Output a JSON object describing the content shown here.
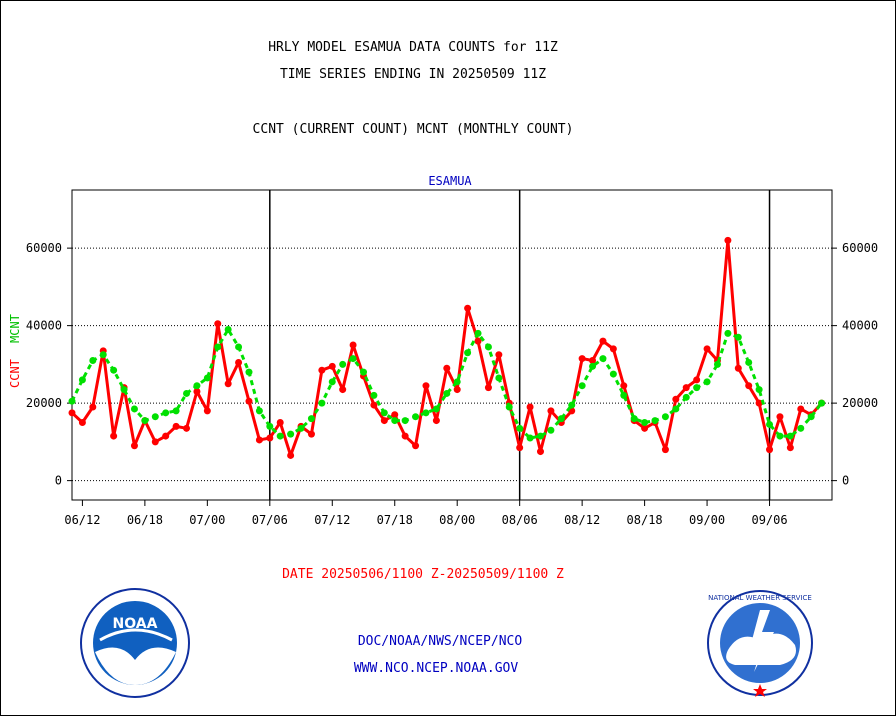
{
  "header": {
    "title_line1": "HRLY MODEL ESAMUA DATA COUNTS for 11Z",
    "title_line2": "TIME SERIES ENDING IN 20250509 11Z",
    "subtitle": "CCNT (CURRENT COUNT) MCNT (MONTHLY COUNT)"
  },
  "footer": {
    "date_range": "DATE 20250506/1100 Z-20250509/1100 Z",
    "org_path": "DOC/NOAA/NWS/NCEP/NCO",
    "website": "WWW.NCO.NCEP.NOAA.GOV",
    "noaa_logo_text": "NOAA",
    "nws_logo_text": "NATIONAL WEATHER SERVICE"
  },
  "colors": {
    "ccnt": "#ff0000",
    "mcnt": "#00e000",
    "axis": "#000000",
    "text_blue": "#0000c0"
  },
  "chart_data": {
    "type": "line",
    "title": "ESAMUA",
    "ylabel_ccnt": "CCNT",
    "ylabel_mcnt": "MCNT",
    "ylim": [
      -5000,
      75000
    ],
    "yticks": [
      0,
      20000,
      40000,
      60000
    ],
    "ytick_labels": [
      "0",
      "20000",
      "40000",
      "60000"
    ],
    "xlim": [
      0,
      73
    ],
    "xticks": [
      1,
      7,
      13,
      19,
      25,
      31,
      37,
      43,
      49,
      55,
      61,
      67
    ],
    "xtick_labels": [
      "06/12",
      "06/18",
      "07/00",
      "07/06",
      "07/12",
      "07/18",
      "08/00",
      "08/06",
      "08/12",
      "08/18",
      "09/00",
      "09/06"
    ],
    "day_boundaries": [
      19,
      43,
      67
    ],
    "grid": "horizontal-dotted",
    "series": [
      {
        "name": "CCNT",
        "values": [
          17500,
          15000,
          19000,
          33500,
          11500,
          24000,
          9000,
          15500,
          10000,
          11500,
          14000,
          13500,
          23000,
          18000,
          40500,
          25000,
          30500,
          20500,
          10500,
          11000,
          15000,
          6500,
          14000,
          12000,
          28500,
          29500,
          23500,
          35000,
          27000,
          19500,
          15500,
          17000,
          11500,
          9000,
          24500,
          15500,
          29000,
          23500,
          44500,
          36000,
          24000,
          32500,
          20000,
          8500,
          19000,
          7500,
          18000,
          15000,
          18000,
          31500,
          31000,
          36000,
          34000,
          24500,
          15500,
          13500,
          15000,
          8000,
          21000,
          24000,
          26000,
          34000,
          31000,
          62000,
          29000,
          24500,
          20000,
          8000,
          16500,
          8500,
          18500,
          17000,
          20000
        ]
      },
      {
        "name": "MCNT",
        "values": [
          20500,
          26000,
          31000,
          32500,
          28500,
          23500,
          18500,
          15500,
          16500,
          17500,
          18000,
          22500,
          24500,
          26500,
          34500,
          39000,
          34500,
          28000,
          18000,
          14000,
          11500,
          12000,
          13500,
          16000,
          20000,
          25500,
          30000,
          31500,
          28000,
          22000,
          17500,
          15500,
          15500,
          16500,
          17500,
          18500,
          22500,
          25500,
          33000,
          38000,
          34500,
          26500,
          19000,
          13500,
          11000,
          11500,
          13000,
          16000,
          19500,
          24500,
          29500,
          31500,
          27500,
          22000,
          16000,
          15000,
          15500,
          16500,
          18500,
          21500,
          24000,
          25500,
          30000,
          38000,
          37000,
          30500,
          23500,
          14500,
          11500,
          11500,
          13500,
          16500,
          20000
        ]
      }
    ]
  }
}
